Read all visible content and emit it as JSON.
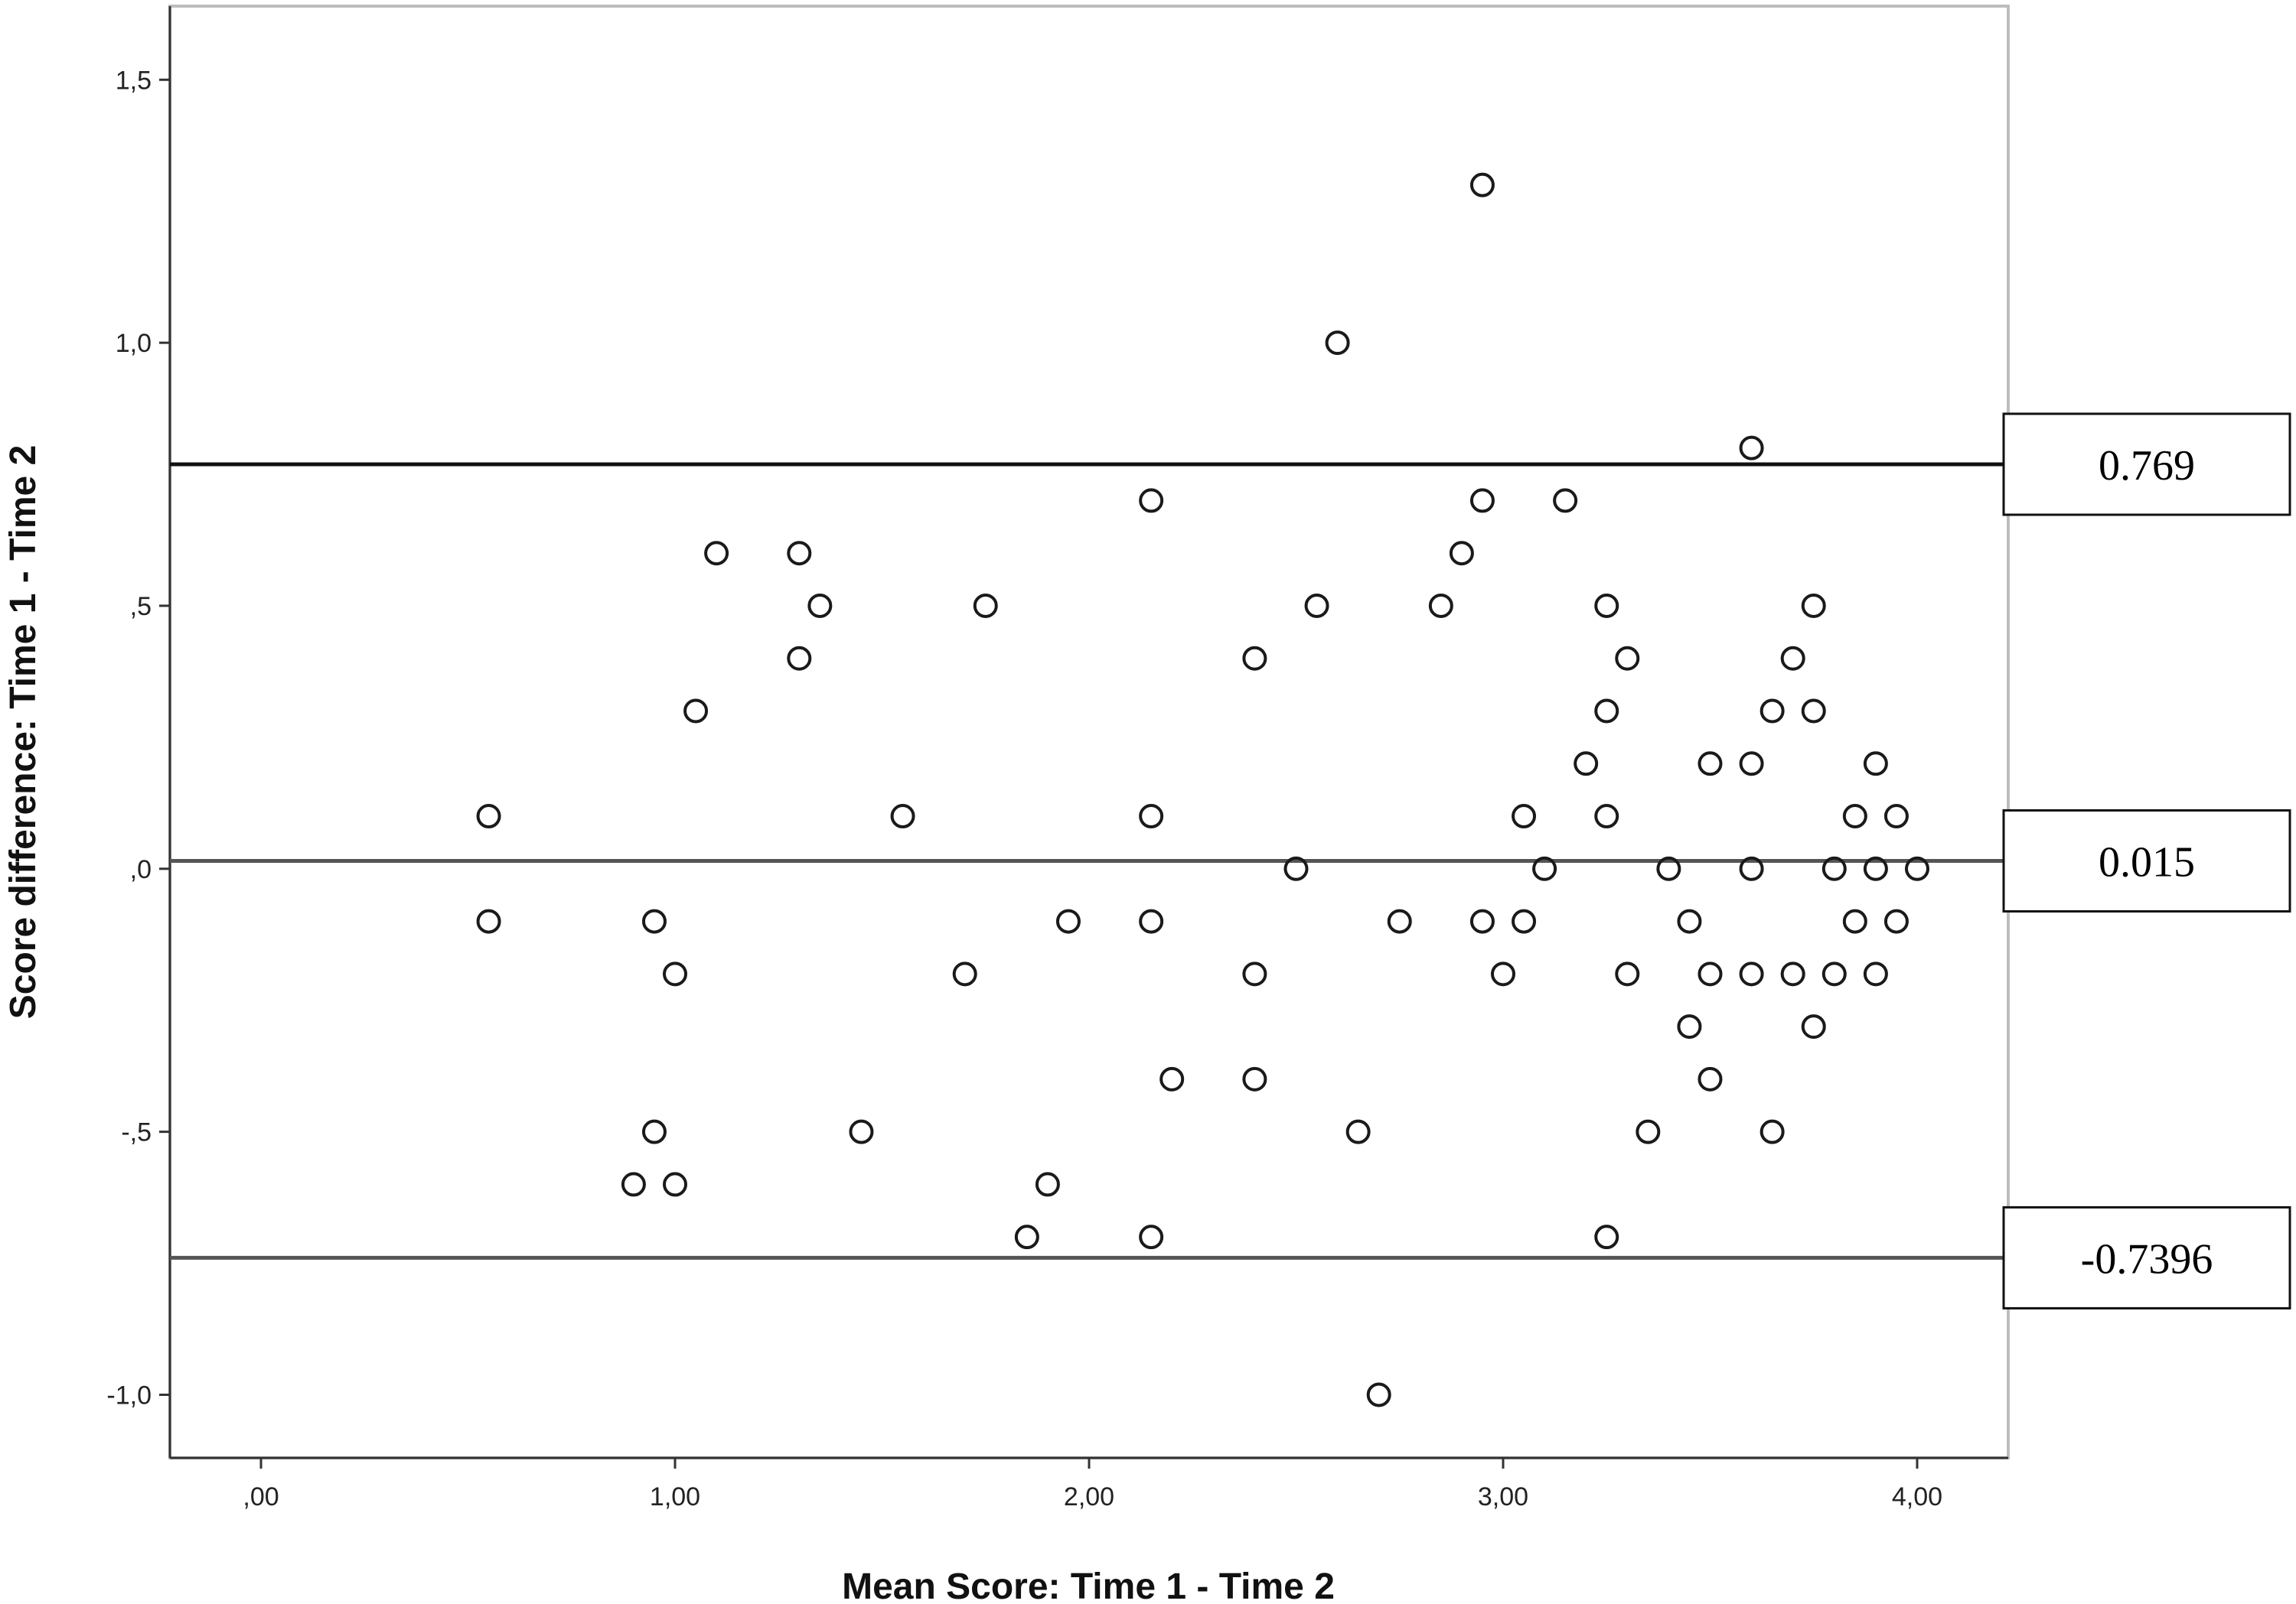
{
  "chart_data": {
    "type": "scatter",
    "xlabel": "Mean Score: Time 1 - Time 2",
    "ylabel": "Score difference: Time 1 - Time 2",
    "xlim": [
      -0.22,
      4.22
    ],
    "ylim": [
      -1.12,
      1.64
    ],
    "x_ticks": [
      {
        "value": 0,
        "label": ",00"
      },
      {
        "value": 1,
        "label": "1,00"
      },
      {
        "value": 2,
        "label": "2,00"
      },
      {
        "value": 3,
        "label": "3,00"
      },
      {
        "value": 4,
        "label": "4,00"
      }
    ],
    "y_ticks": [
      {
        "value": 1.5,
        "label": "1,5"
      },
      {
        "value": 1.0,
        "label": "1,0"
      },
      {
        "value": 0.5,
        "label": ",5"
      },
      {
        "value": 0.0,
        "label": ",0"
      },
      {
        "value": -0.5,
        "label": "-,5"
      },
      {
        "value": -1.0,
        "label": "-1,0"
      }
    ],
    "reference_lines": [
      {
        "value": 0.769,
        "label": "0.769",
        "color": "#111111"
      },
      {
        "value": 0.015,
        "label": "0.015",
        "color": "#555555"
      },
      {
        "value": -0.7396,
        "label": "-0.7396",
        "color": "#555555"
      }
    ],
    "points": [
      [
        0.55,
        0.1
      ],
      [
        0.55,
        -0.1
      ],
      [
        0.9,
        -0.6
      ],
      [
        0.95,
        -0.1
      ],
      [
        0.95,
        -0.5
      ],
      [
        1.0,
        -0.2
      ],
      [
        1.0,
        -0.6
      ],
      [
        1.05,
        0.3
      ],
      [
        1.1,
        0.6
      ],
      [
        1.3,
        0.6
      ],
      [
        1.3,
        0.4
      ],
      [
        1.35,
        0.5
      ],
      [
        1.45,
        -0.5
      ],
      [
        1.55,
        0.1
      ],
      [
        1.7,
        -0.2
      ],
      [
        1.75,
        0.5
      ],
      [
        1.85,
        -0.7
      ],
      [
        1.9,
        -0.6
      ],
      [
        1.95,
        -0.1
      ],
      [
        2.15,
        0.7
      ],
      [
        2.15,
        0.1
      ],
      [
        2.15,
        -0.1
      ],
      [
        2.15,
        -0.7
      ],
      [
        2.2,
        -0.4
      ],
      [
        2.4,
        0.4
      ],
      [
        2.4,
        -0.2
      ],
      [
        2.4,
        -0.4
      ],
      [
        2.5,
        0.0
      ],
      [
        2.55,
        0.5
      ],
      [
        2.6,
        1.0
      ],
      [
        2.65,
        -0.5
      ],
      [
        2.7,
        -1.0
      ],
      [
        2.75,
        -0.1
      ],
      [
        2.85,
        0.5
      ],
      [
        2.9,
        0.6
      ],
      [
        2.95,
        1.3
      ],
      [
        2.95,
        0.7
      ],
      [
        2.95,
        -0.1
      ],
      [
        3.0,
        -0.2
      ],
      [
        3.05,
        0.1
      ],
      [
        3.05,
        -0.1
      ],
      [
        3.1,
        0.0
      ],
      [
        3.15,
        0.7
      ],
      [
        3.2,
        0.2
      ],
      [
        3.25,
        0.5
      ],
      [
        3.25,
        0.3
      ],
      [
        3.25,
        0.1
      ],
      [
        3.25,
        -0.7
      ],
      [
        3.3,
        0.4
      ],
      [
        3.3,
        -0.2
      ],
      [
        3.35,
        -0.5
      ],
      [
        3.4,
        0.0
      ],
      [
        3.45,
        -0.1
      ],
      [
        3.45,
        -0.3
      ],
      [
        3.5,
        0.2
      ],
      [
        3.5,
        -0.2
      ],
      [
        3.5,
        -0.4
      ],
      [
        3.6,
        0.8
      ],
      [
        3.6,
        0.2
      ],
      [
        3.6,
        0.0
      ],
      [
        3.6,
        -0.2
      ],
      [
        3.65,
        0.3
      ],
      [
        3.65,
        -0.5
      ],
      [
        3.7,
        0.4
      ],
      [
        3.7,
        -0.2
      ],
      [
        3.75,
        0.5
      ],
      [
        3.75,
        0.3
      ],
      [
        3.75,
        -0.3
      ],
      [
        3.8,
        0.0
      ],
      [
        3.8,
        -0.2
      ],
      [
        3.85,
        0.1
      ],
      [
        3.85,
        -0.1
      ],
      [
        3.9,
        0.2
      ],
      [
        3.9,
        0.0
      ],
      [
        3.9,
        -0.2
      ],
      [
        3.95,
        0.1
      ],
      [
        3.95,
        -0.1
      ],
      [
        4.0,
        0.0
      ]
    ]
  }
}
